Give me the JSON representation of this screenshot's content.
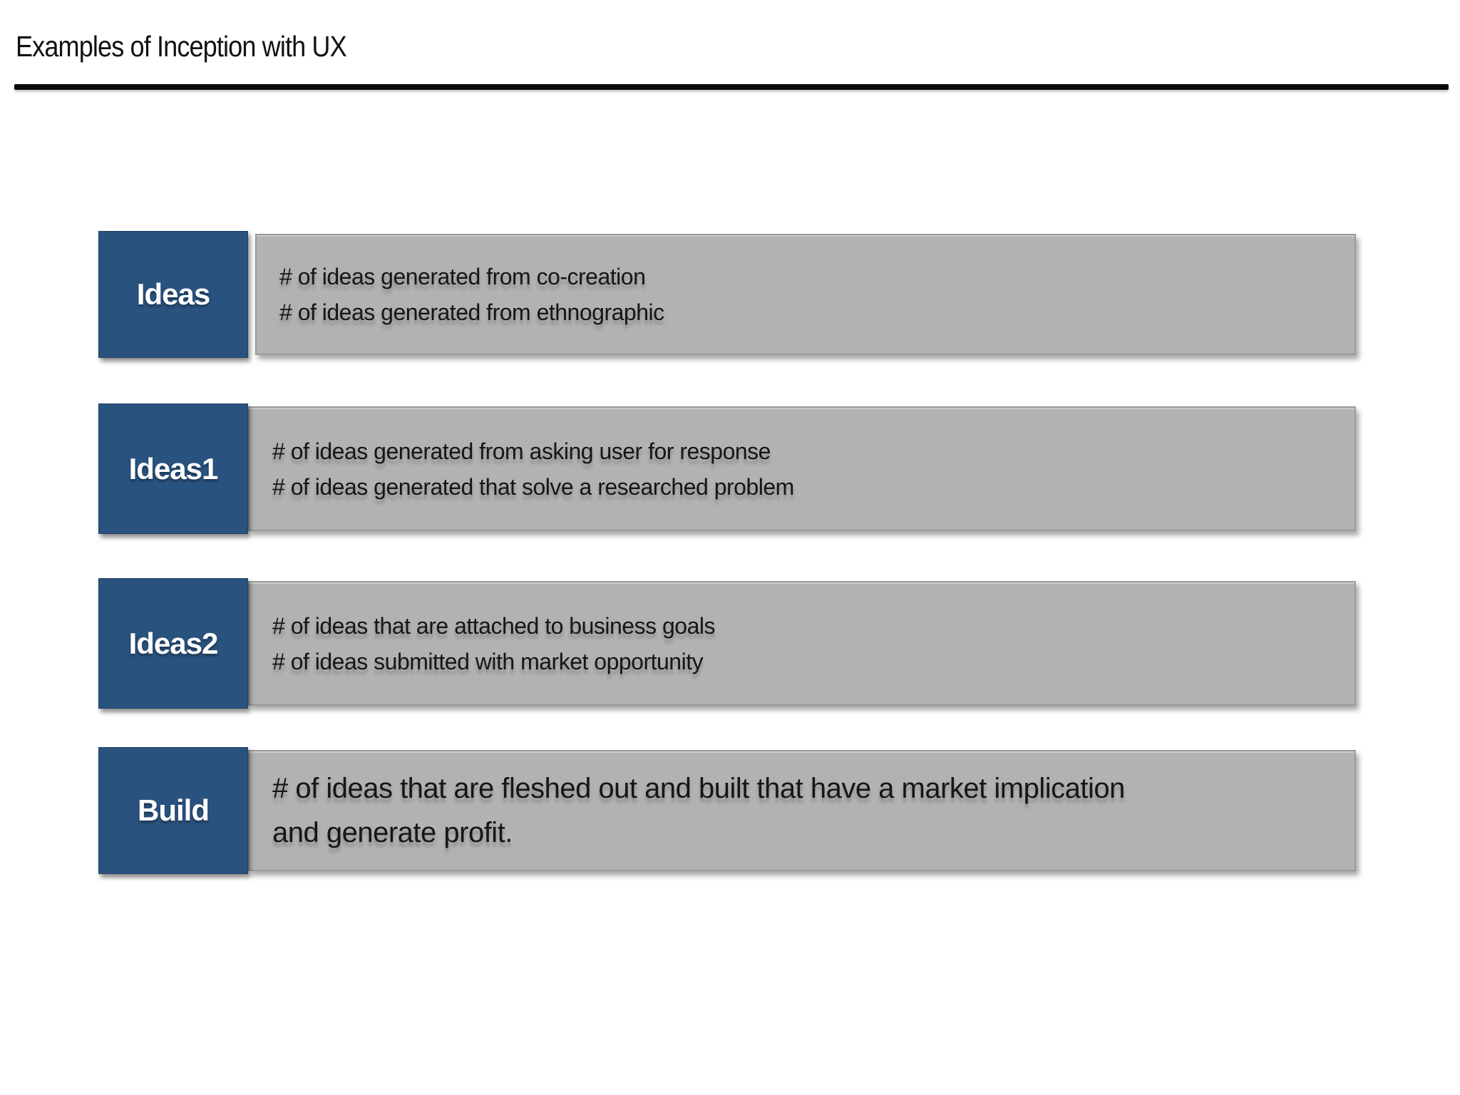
{
  "title": "Examples of Inception with UX",
  "colors": {
    "label_blue": "#2A527F",
    "content_gray": "#B2B2B2",
    "content_border": "#9A9A9A",
    "rule_black": "#0B0B0B",
    "label_text": "#FFFFFF",
    "body_text": "#161616"
  },
  "rows": [
    {
      "label": "Ideas",
      "lines": [
        "# of ideas generated from co-creation",
        "# of ideas generated from ethnographic"
      ]
    },
    {
      "label": "Ideas1",
      "lines": [
        "# of ideas generated from asking user for response",
        "# of ideas generated that solve a researched problem"
      ]
    },
    {
      "label": "Ideas2",
      "lines": [
        "# of ideas that are attached to business goals",
        "# of ideas submitted with market opportunity"
      ]
    },
    {
      "label": "Build",
      "lines": [
        "# of ideas that are fleshed out and built that have a market implication",
        "and generate profit."
      ]
    }
  ]
}
